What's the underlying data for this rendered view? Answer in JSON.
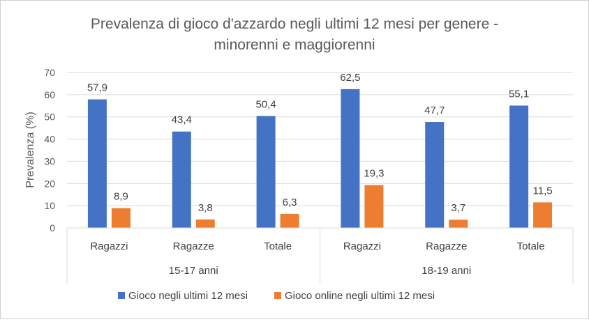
{
  "chart_data": {
    "type": "bar",
    "title_lines": [
      "Prevalenza di gioco d'azzardo negli ultimi 12 mesi per genere -",
      "minorenni e maggiorenni"
    ],
    "ylabel": "Prevalenza (%)",
    "xlabel": "",
    "ylim": [
      0,
      70
    ],
    "yticks": [
      0,
      10,
      20,
      30,
      40,
      50,
      60,
      70
    ],
    "grid": true,
    "legend_position": "bottom",
    "groups": [
      {
        "label": "15-17 anni",
        "categories": [
          "Ragazzi",
          "Ragazze",
          "Totale"
        ]
      },
      {
        "label": "18-19 anni",
        "categories": [
          "Ragazzi",
          "Ragazze",
          "Totale"
        ]
      }
    ],
    "categories": [
      "Ragazzi",
      "Ragazze",
      "Totale",
      "Ragazzi",
      "Ragazze",
      "Totale"
    ],
    "series": [
      {
        "name": "Gioco negli ultimi 12 mesi",
        "color": "#4472C4",
        "values": [
          57.9,
          43.4,
          50.4,
          62.5,
          47.7,
          55.1
        ],
        "labels": [
          "57,9",
          "43,4",
          "50,4",
          "62,5",
          "47,7",
          "55,1"
        ]
      },
      {
        "name": "Gioco online negli ultimi 12 mesi",
        "color": "#ED7D31",
        "values": [
          8.9,
          3.8,
          6.3,
          19.3,
          3.7,
          11.5
        ],
        "labels": [
          "8,9",
          "3,8",
          "6,3",
          "19,3",
          "3,7",
          "11,5"
        ]
      }
    ]
  }
}
